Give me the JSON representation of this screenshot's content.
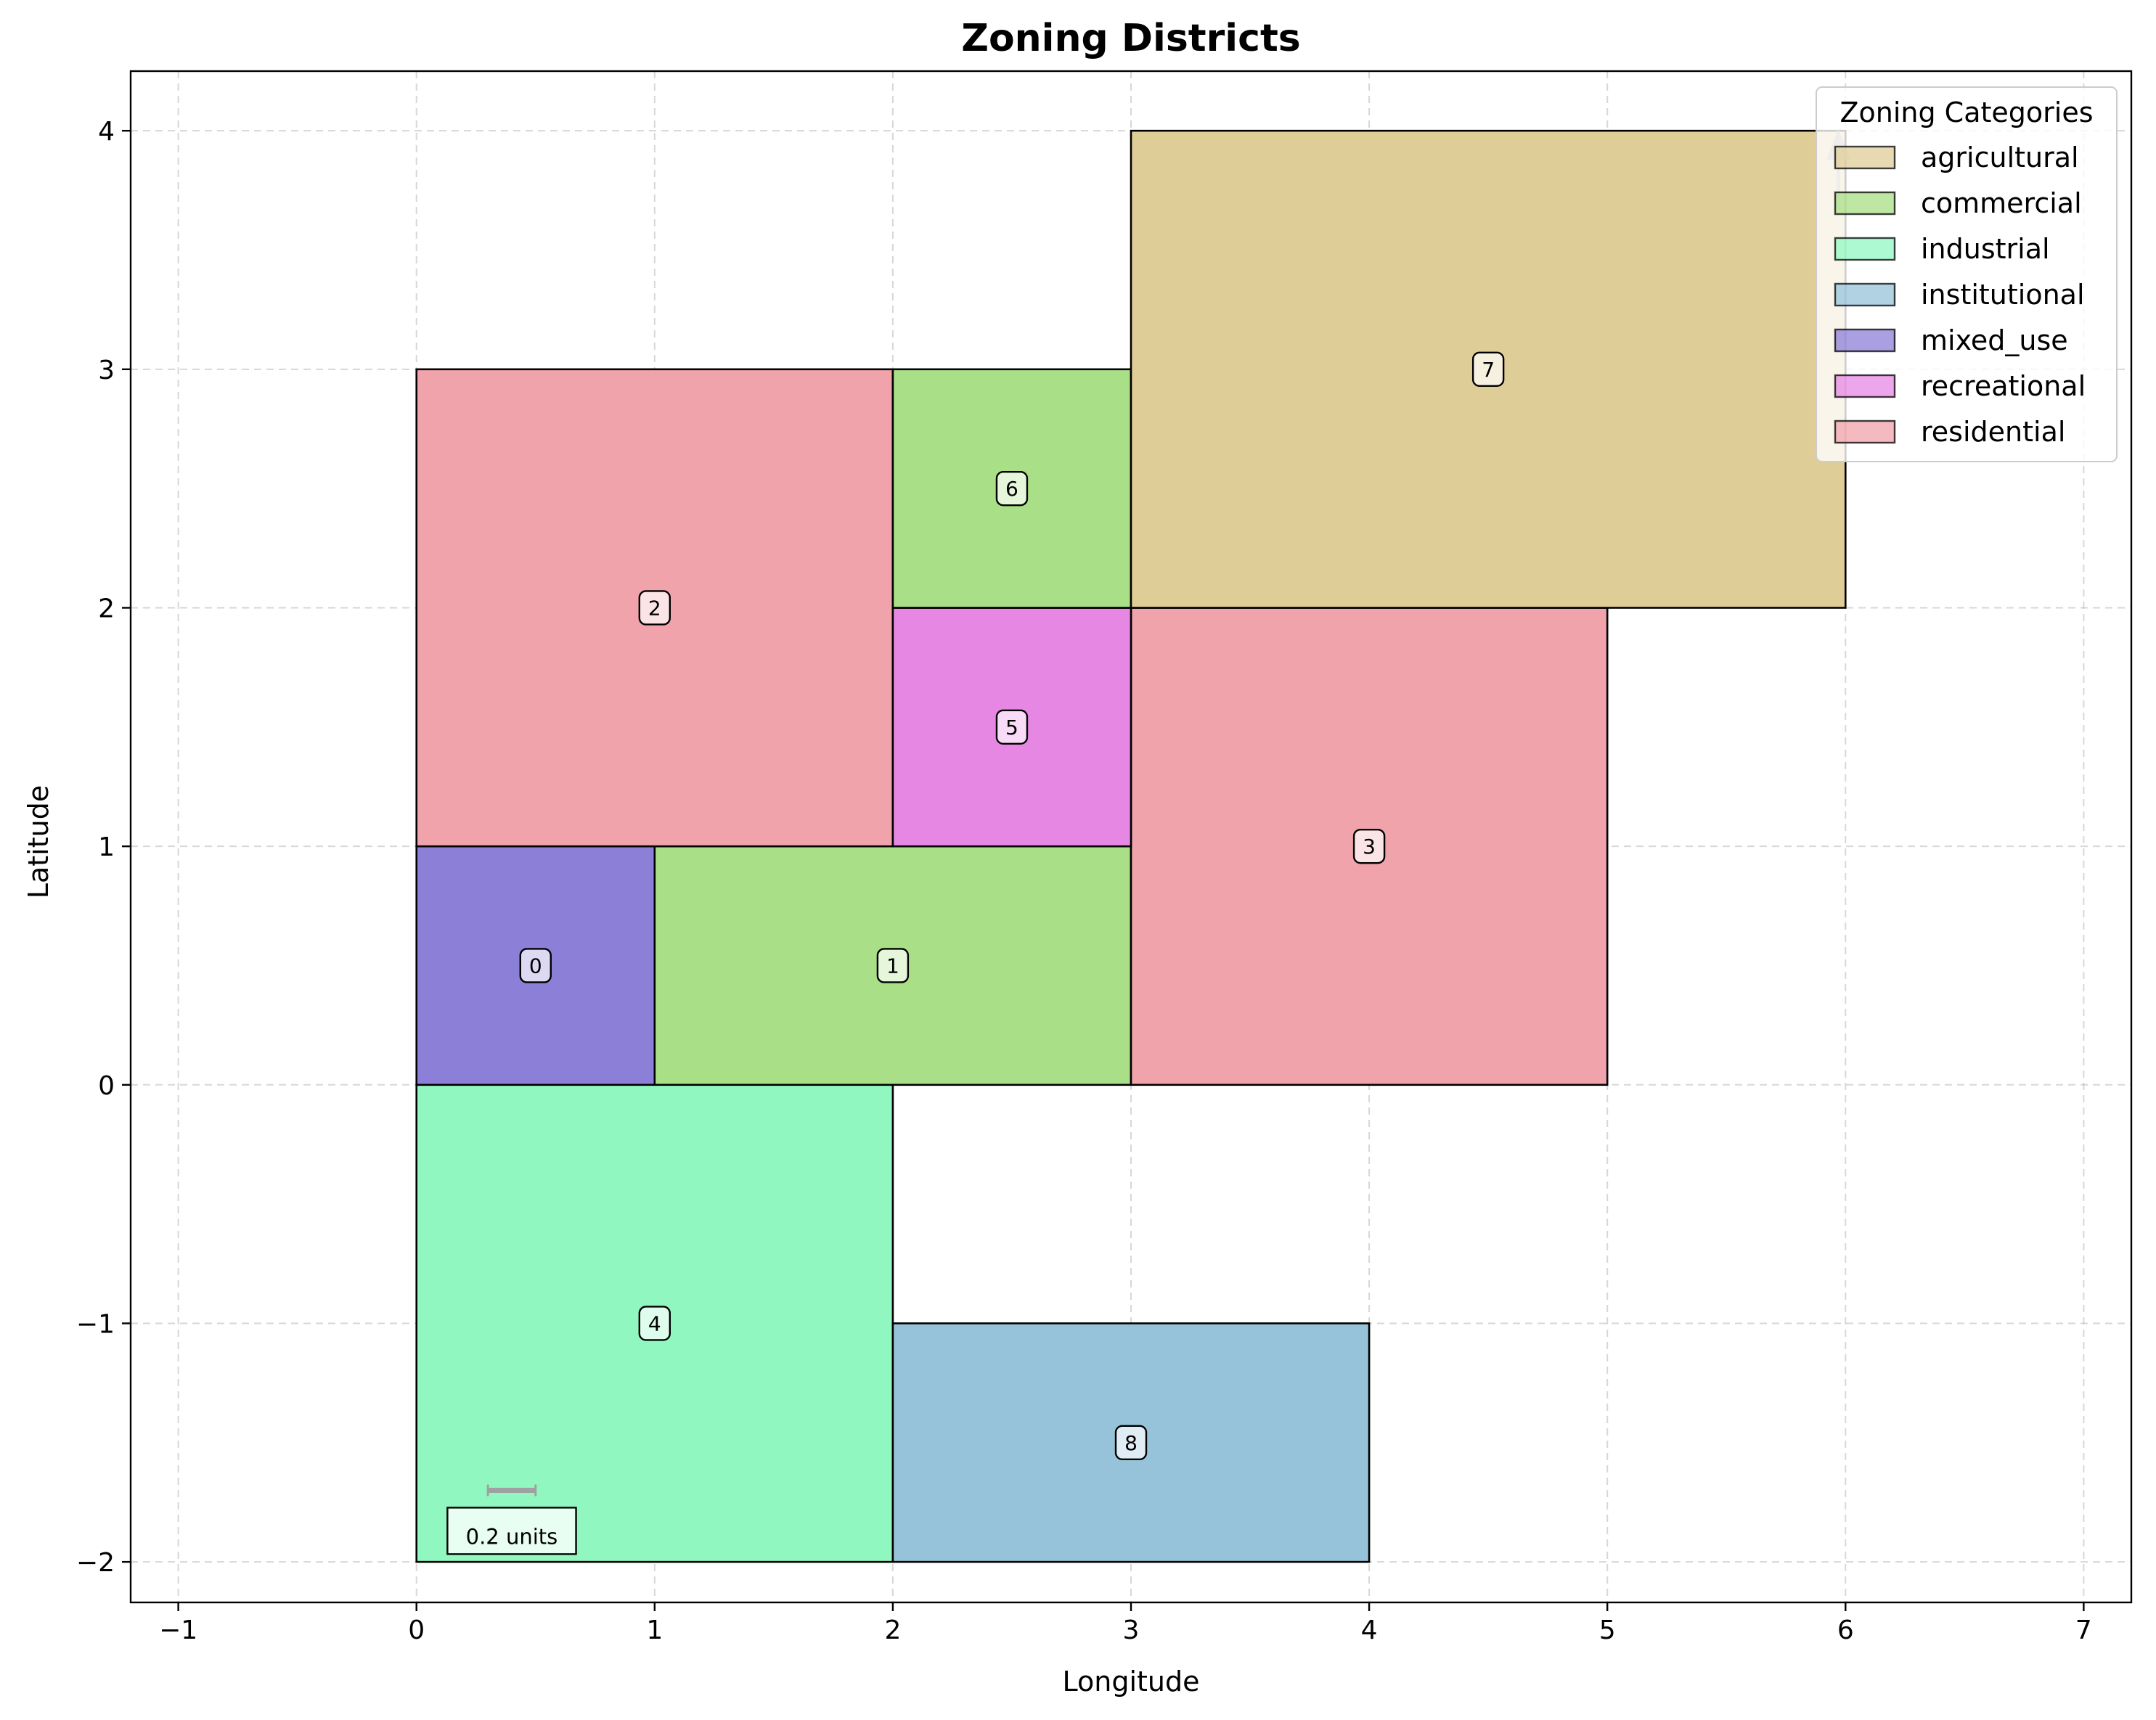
{
  "chart_data": {
    "type": "map",
    "title": "Zoning Districts",
    "xlabel": "Longitude",
    "ylabel": "Latitude",
    "xlim": [
      -1.2,
      7.2
    ],
    "ylim": [
      -2.17,
      4.25
    ],
    "xticks": [
      -1,
      0,
      1,
      2,
      3,
      4,
      5,
      6,
      7
    ],
    "yticks": [
      -2,
      -1,
      0,
      1,
      2,
      3,
      4
    ],
    "grid": true,
    "legend": {
      "title": "Zoning Categories",
      "placement": "top-right",
      "entries": [
        {
          "label": "agricultural",
          "color": "#dfcd98"
        },
        {
          "label": "commercial",
          "color": "#a9df86"
        },
        {
          "label": "industrial",
          "color": "#91f7c1"
        },
        {
          "label": "institutional",
          "color": "#96c3d9"
        },
        {
          "label": "mixed_use",
          "color": "#8c7fd7"
        },
        {
          "label": "recreational",
          "color": "#e787e4"
        },
        {
          "label": "residential",
          "color": "#f0a3ab"
        }
      ]
    },
    "districts": [
      {
        "id": "0",
        "category": "mixed_use",
        "x": [
          0,
          1
        ],
        "y": [
          0,
          1
        ]
      },
      {
        "id": "1",
        "category": "commercial",
        "x": [
          1,
          3
        ],
        "y": [
          0,
          1
        ]
      },
      {
        "id": "2",
        "category": "residential",
        "x": [
          0,
          2
        ],
        "y": [
          1,
          3
        ]
      },
      {
        "id": "3",
        "category": "residential",
        "x": [
          3,
          5
        ],
        "y": [
          0,
          2
        ]
      },
      {
        "id": "4",
        "category": "industrial",
        "x": [
          0,
          2
        ],
        "y": [
          -2,
          0
        ]
      },
      {
        "id": "5",
        "category": "recreational",
        "x": [
          2,
          3
        ],
        "y": [
          1,
          2
        ]
      },
      {
        "id": "6",
        "category": "commercial",
        "x": [
          2,
          3
        ],
        "y": [
          2,
          3
        ]
      },
      {
        "id": "7",
        "category": "agricultural",
        "x": [
          3,
          6
        ],
        "y": [
          2,
          4
        ]
      },
      {
        "id": "8",
        "category": "institutional",
        "x": [
          2,
          4
        ],
        "y": [
          -2,
          -1
        ]
      }
    ],
    "scale_bar": {
      "label": "0.2 units",
      "length": 0.2
    },
    "north_arrow": true
  }
}
